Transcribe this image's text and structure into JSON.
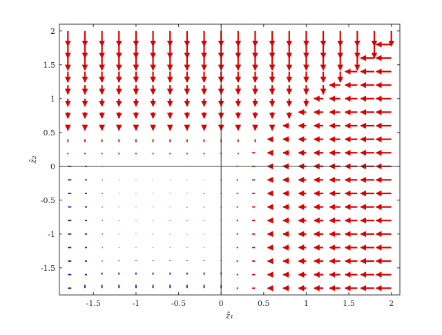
{
  "chart_data": {
    "type": "quiver",
    "title": "",
    "xlabel": "ẑ₁",
    "ylabel": "ẑ₂",
    "xlim": [
      -1.9,
      2.1
    ],
    "ylim": [
      -1.9,
      2.1
    ],
    "xticks": [
      -1.5,
      -1,
      -0.5,
      0,
      0.5,
      1,
      1.5,
      2
    ],
    "xtick_labels": [
      "-1.5",
      "-1",
      "-0.5",
      "0",
      "0.5",
      "1",
      "1.5",
      "2"
    ],
    "yticks": [
      -1.5,
      -1,
      -0.5,
      0,
      0.5,
      1,
      1.5,
      2
    ],
    "ytick_labels": [
      "-1.5",
      "-1",
      "-0.5",
      "0",
      "0.5",
      "1",
      "1.5",
      "2"
    ],
    "grid": false,
    "zero_lines": true,
    "grid_points": {
      "x_start": -1.8,
      "x_end": 2.0,
      "x_count": 20,
      "y_start": -1.8,
      "y_end": 2.0,
      "y_count": 20
    },
    "vector_field": "(x>0 && y>0): x>y ? (-x,0) : (0,-y); else red at points with x>0 or y>0 and blue otherwise, arrows approaching the axes",
    "colors": {
      "red": "#dd0000",
      "blue": "#1111cc",
      "axis": "#333333"
    }
  }
}
